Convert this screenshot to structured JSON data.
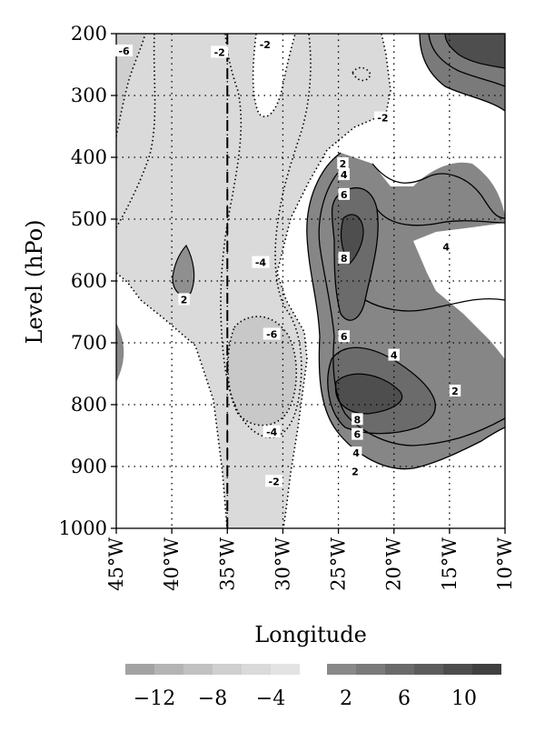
{
  "chart_data": {
    "type": "contour",
    "xlabel": "Longitude",
    "ylabel": "Level (hPo)",
    "x_ticks": [
      "45°W",
      "40°W",
      "35°W",
      "30°W",
      "25°W",
      "20°W",
      "15°W",
      "10°W"
    ],
    "x_values": [
      -45,
      -40,
      -35,
      -30,
      -25,
      -20,
      -15,
      -10
    ],
    "xlim": [
      -45,
      -10
    ],
    "y_ticks": [
      "200",
      "300",
      "400",
      "500",
      "600",
      "700",
      "800",
      "900",
      "1000"
    ],
    "y_values": [
      200,
      300,
      400,
      500,
      600,
      700,
      800,
      900,
      1000
    ],
    "ylim": [
      200,
      1000
    ],
    "grid": "dotted",
    "reference_line": {
      "style": "dashed",
      "x": -35
    },
    "contour_labels": [
      {
        "text": "-6",
        "lon": -44.3,
        "level": 228
      },
      {
        "text": "-2",
        "lon": -35.7,
        "level": 230
      },
      {
        "text": "-2",
        "lon": -31.6,
        "level": 218
      },
      {
        "text": "-2",
        "lon": -21.0,
        "level": 336
      },
      {
        "text": "2",
        "lon": -24.6,
        "level": 410
      },
      {
        "text": "4",
        "lon": -24.5,
        "level": 428
      },
      {
        "text": "6",
        "lon": -24.5,
        "level": 460
      },
      {
        "text": "8",
        "lon": -24.5,
        "level": 563
      },
      {
        "text": "-4",
        "lon": -32.0,
        "level": 570
      },
      {
        "text": "2",
        "lon": -38.9,
        "level": 630
      },
      {
        "text": "-6",
        "lon": -31.0,
        "level": 686
      },
      {
        "text": "6",
        "lon": -24.5,
        "level": 690
      },
      {
        "text": "4",
        "lon": -20.0,
        "level": 720
      },
      {
        "text": "2",
        "lon": -14.5,
        "level": 778
      },
      {
        "text": "-4",
        "lon": -31.0,
        "level": 844
      },
      {
        "text": "8",
        "lon": -23.3,
        "level": 824
      },
      {
        "text": "6",
        "lon": -23.3,
        "level": 848
      },
      {
        "text": "4",
        "lon": -23.4,
        "level": 878
      },
      {
        "text": "2",
        "lon": -23.5,
        "level": 908
      },
      {
        "text": "4",
        "lon": -15.3,
        "level": 545
      },
      {
        "text": "-2",
        "lon": -30.8,
        "level": 924
      }
    ],
    "colorbar": {
      "tick_labels": [
        "−12",
        "−8",
        "−4",
        "2",
        "6",
        "10"
      ],
      "negative_colors": [
        "#a3a3a3",
        "#b4b4b4",
        "#c1c1c1",
        "#cfcfcf",
        "#dadada",
        "#e3e3e3"
      ],
      "positive_colors": [
        "#898989",
        "#7a7a7a",
        "#6a6a6a",
        "#5c5c5c",
        "#4d4d4d",
        "#404040"
      ]
    }
  }
}
